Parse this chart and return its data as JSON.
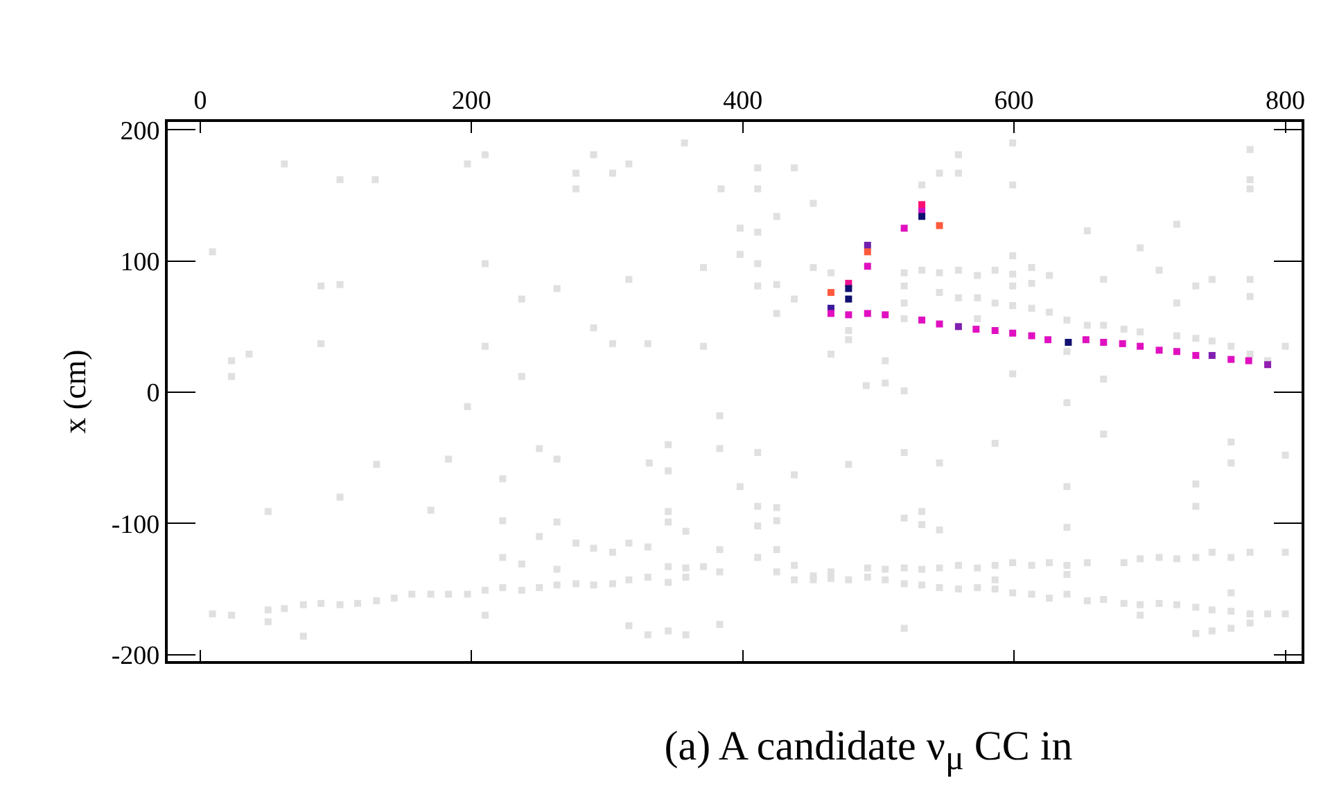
{
  "chart_data": {
    "type": "scatter",
    "ylabel": "x (cm)",
    "marker": "square",
    "xlim": [
      -24,
      812
    ],
    "xticks": [
      0,
      200,
      400,
      600,
      800
    ],
    "ylim": [
      -205,
      206
    ],
    "yticks": [
      -200,
      -100,
      0,
      100,
      200
    ],
    "annotations": [
      "(a) A candidate ν$_{μ}$ CC in"
    ],
    "series": [
      {
        "color": "#e0e0e0",
        "x": [
          62,
          103,
          129,
          197,
          210,
          277,
          277,
          290,
          304,
          316,
          357,
          9,
          210,
          89,
          103,
          237,
          263,
          316,
          371,
          290,
          304,
          330,
          371,
          210,
          89,
          23,
          36,
          23,
          237,
          197,
          130,
          183,
          250,
          263,
          223,
          103,
          50,
          170,
          223,
          263,
          250,
          331,
          345,
          345,
          345,
          345,
          358,
          277,
          290,
          304,
          316,
          330,
          223,
          237,
          263,
          345,
          358,
          371,
          9,
          23,
          50,
          62,
          76,
          89,
          103,
          116,
          130,
          143,
          156,
          170,
          183,
          197,
          210,
          223,
          237,
          250,
          263,
          277,
          290,
          304,
          316,
          330,
          345,
          358,
          50,
          76,
          210,
          316,
          330,
          345,
          358,
          383,
          383,
          383,
          383,
          383,
          384,
          398,
          411,
          411,
          411,
          438,
          425,
          452,
          411,
          398,
          452,
          465,
          425,
          411,
          438,
          425,
          465,
          478,
          478,
          505,
          505,
          491,
          519,
          519,
          519,
          519,
          519,
          532,
          532,
          545,
          559,
          559,
          545,
          545,
          559,
          559,
          573,
          573,
          573,
          586,
          586,
          599,
          599,
          599,
          599,
          599,
          599,
          599,
          613,
          613,
          613,
          626,
          626,
          639,
          639,
          654,
          654,
          666,
          666,
          666,
          681,
          693,
          693,
          707,
          720,
          720,
          720,
          734,
          734,
          746,
          746,
          760,
          774,
          774,
          774,
          774,
          774,
          774,
          787,
          800,
          398,
          411,
          411,
          411,
          411,
          425,
          425,
          425,
          425,
          438,
          438,
          438,
          452,
          452,
          465,
          465,
          478,
          478,
          492,
          492,
          505,
          505,
          519,
          519,
          519,
          519,
          519,
          532,
          532,
          532,
          532,
          545,
          545,
          545,
          545,
          559,
          559,
          573,
          573,
          586,
          586,
          586,
          586,
          599,
          599,
          613,
          613,
          626,
          626,
          639,
          639,
          639,
          639,
          639,
          639,
          654,
          654,
          666,
          666,
          681,
          681,
          693,
          693,
          693,
          707,
          707,
          720,
          720,
          734,
          734,
          734,
          734,
          734,
          746,
          746,
          746,
          760,
          760,
          760,
          760,
          760,
          760,
          774,
          774,
          774,
          787,
          800,
          800,
          800
        ],
        "values": [
          174,
          162,
          162,
          174,
          181,
          167,
          155,
          181,
          167,
          174,
          190,
          107,
          98,
          81,
          82,
          71,
          79,
          86,
          95,
          49,
          37,
          37,
          35,
          35,
          37,
          24,
          29,
          12,
          12,
          -11,
          -55,
          -51,
          -43,
          -51,
          -66,
          -80,
          -91,
          -90,
          -98,
          -99,
          -110,
          -54,
          -40,
          -60,
          -91,
          -99,
          -106,
          -115,
          -119,
          -122,
          -115,
          -118,
          -126,
          -131,
          -135,
          -133,
          -134,
          -133,
          -169,
          -170,
          -166,
          -165,
          -162,
          -161,
          -162,
          -161,
          -159,
          -157,
          -154,
          -154,
          -154,
          -154,
          -151,
          -149,
          -151,
          -149,
          -147,
          -146,
          -147,
          -146,
          -143,
          -141,
          -145,
          -141,
          -175,
          -186,
          -170,
          -178,
          -185,
          -182,
          -185,
          -177,
          -18,
          -43,
          -120,
          -137,
          155,
          125,
          171,
          155,
          122,
          171,
          134,
          144,
          98,
          105,
          95,
          91,
          82,
          81,
          71,
          60,
          29,
          47,
          40,
          24,
          7,
          5,
          1,
          91,
          81,
          68,
          56,
          93,
          158,
          167,
          181,
          167,
          91,
          76,
          93,
          72,
          89,
          72,
          56,
          93,
          68,
          190,
          158,
          104,
          90,
          81,
          66,
          14,
          95,
          83,
          64,
          89,
          61,
          55,
          31,
          123,
          51,
          86,
          51,
          10,
          48,
          110,
          46,
          93,
          128,
          68,
          43,
          81,
          41,
          86,
          39,
          35,
          185,
          162,
          155,
          86,
          73,
          29,
          24,
          35,
          -72,
          -46,
          -87,
          -102,
          -126,
          -88,
          -98,
          -120,
          -137,
          -63,
          -132,
          -143,
          -140,
          -143,
          -137,
          -142,
          -55,
          -143,
          -134,
          -141,
          -135,
          -143,
          -46,
          -96,
          -134,
          -146,
          -180,
          -91,
          -101,
          -135,
          -147,
          -54,
          -105,
          -134,
          -149,
          -132,
          -150,
          -134,
          -149,
          -39,
          -132,
          -143,
          -150,
          -130,
          -153,
          -132,
          -154,
          -130,
          -157,
          -8,
          -72,
          -103,
          -132,
          -139,
          -154,
          -130,
          -159,
          -32,
          -158,
          -130,
          -161,
          -127,
          -162,
          -170,
          -126,
          -161,
          -127,
          -162,
          -70,
          -87,
          -126,
          -164,
          -184,
          -122,
          -166,
          -182,
          -38,
          -54,
          -126,
          -153,
          -167,
          -180,
          -122,
          -169,
          -176,
          -169,
          -48,
          -122,
          -169
        ]
      },
      {
        "colors": [
          "#ff5a3c",
          "#3a1a9a",
          "#e010c0",
          "#f01090",
          "#101070",
          "#101070",
          "#e010c0",
          "#7020b0",
          "#ff5a3c",
          "#e010c0",
          "#e010c0",
          "#e010c0",
          "#e010c0",
          "#ff1070",
          "#d010c0",
          "#101070",
          "#ff5a3c",
          "#e010c0",
          "#e010c0",
          "#8020b0",
          "#e010c0",
          "#e010c0",
          "#e010c0",
          "#e010c0",
          "#e010c0",
          "#101070",
          "#e010c0",
          "#e010c0",
          "#e010c0",
          "#e010c0",
          "#e010c0",
          "#e010c0",
          "#e010c0",
          "#8020b0",
          "#e010c0",
          "#e010c0",
          "#9020b0"
        ],
        "x": [
          465,
          465,
          465,
          478,
          478,
          478,
          478,
          492,
          492,
          492,
          492,
          505,
          519,
          532,
          532,
          532,
          545,
          532,
          545,
          559,
          572,
          586,
          599,
          613,
          625,
          640,
          653,
          666,
          680,
          693,
          707,
          720,
          734,
          746,
          760,
          773,
          787
        ],
        "values": [
          76,
          64,
          60,
          83,
          79,
          71,
          59,
          112,
          107,
          96,
          60,
          59,
          125,
          143,
          138,
          134,
          127,
          55,
          52,
          50,
          48,
          47,
          45,
          43,
          40,
          38,
          40,
          38,
          37,
          35,
          32,
          31,
          28,
          28,
          25,
          24,
          21
        ]
      }
    ]
  }
}
